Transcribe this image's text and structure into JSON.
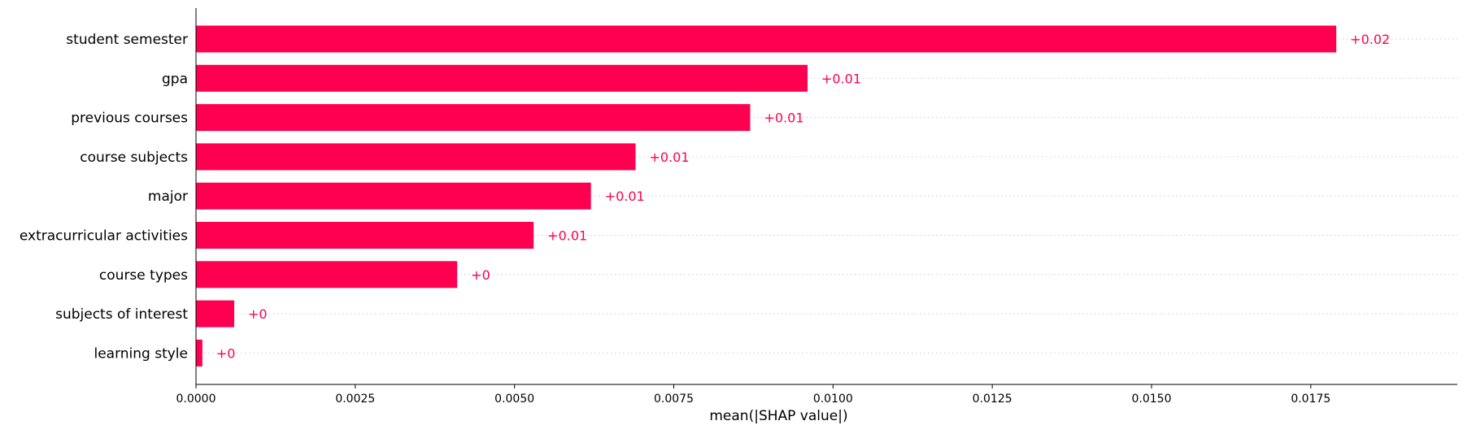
{
  "chart_data": {
    "type": "bar",
    "orientation": "horizontal",
    "title": "",
    "xlabel": "mean(|SHAP value|)",
    "ylabel": "",
    "categories": [
      "student semester",
      "gpa",
      "previous courses",
      "course subjects",
      "major",
      "extracurricular activities",
      "course types",
      "subjects of interest",
      "learning style"
    ],
    "values": [
      0.0179,
      0.0096,
      0.0087,
      0.0069,
      0.0062,
      0.0053,
      0.0041,
      0.0006,
      0.0001
    ],
    "value_labels": [
      "+0.02",
      "+0.01",
      "+0.01",
      "+0.01",
      "+0.01",
      "+0.01",
      "+0",
      "+0",
      "+0"
    ],
    "xlim": [
      0,
      0.0198
    ],
    "xticks": [
      0,
      0.0025,
      0.005,
      0.0075,
      0.01,
      0.0125,
      0.015,
      0.0175
    ],
    "xtick_labels": [
      "0.0000",
      "0.0025",
      "0.0050",
      "0.0075",
      "0.0100",
      "0.0125",
      "0.0150",
      "0.0175"
    ],
    "grid": "dotted horizontal guides per bar",
    "legend": "none",
    "colors": {
      "bar": "#ff0051",
      "value_label": "#ff0051",
      "axis": "#000000",
      "guide": "#cccccc"
    }
  }
}
